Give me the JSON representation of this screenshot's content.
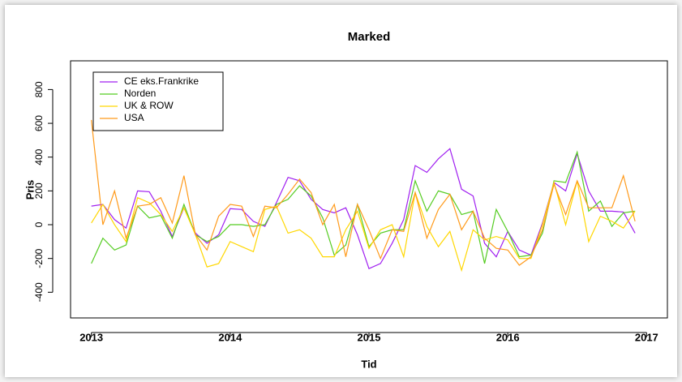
{
  "chart_data": {
    "type": "line",
    "title": "Marked",
    "x_label": "Tid",
    "y_label": "Pris",
    "x": [
      2013,
      2013.083,
      2013.167,
      2013.25,
      2013.333,
      2013.417,
      2013.5,
      2013.583,
      2013.667,
      2013.75,
      2013.833,
      2013.917,
      2014,
      2014.083,
      2014.167,
      2014.25,
      2014.333,
      2014.417,
      2014.5,
      2014.583,
      2014.667,
      2014.75,
      2014.833,
      2014.917,
      2015,
      2015.083,
      2015.167,
      2015.25,
      2015.333,
      2015.417,
      2015.5,
      2015.583,
      2015.667,
      2015.75,
      2015.833,
      2015.917,
      2016,
      2016.083,
      2016.167,
      2016.25,
      2016.333,
      2016.417,
      2016.5,
      2016.583,
      2016.667,
      2016.75,
      2016.833,
      2016.917
    ],
    "series": [
      {
        "name": "CE eks.Frankrike",
        "color": "#a020f0",
        "values": [
          110,
          120,
          30,
          -20,
          200,
          195,
          80,
          -70,
          100,
          -50,
          -110,
          -60,
          95,
          90,
          20,
          -10,
          130,
          280,
          260,
          150,
          90,
          70,
          100,
          -60,
          -260,
          -230,
          -110,
          30,
          350,
          310,
          390,
          450,
          210,
          170,
          -110,
          -190,
          -40,
          -150,
          -180,
          10,
          250,
          200,
          420,
          200,
          80,
          80,
          75,
          -50
        ]
      },
      {
        "name": "Norden",
        "color": "#55cc22",
        "values": [
          -230,
          -80,
          -150,
          -120,
          110,
          40,
          55,
          -80,
          120,
          -60,
          -100,
          -70,
          0,
          0,
          -10,
          0,
          120,
          150,
          230,
          170,
          40,
          -180,
          -120,
          120,
          -130,
          -50,
          -30,
          -30,
          260,
          80,
          200,
          180,
          60,
          80,
          -230,
          90,
          -40,
          -190,
          -180,
          -50,
          260,
          250,
          430,
          80,
          140,
          -10,
          70,
          80
        ]
      },
      {
        "name": "UK & ROW",
        "color": "#ffd700",
        "values": [
          10,
          120,
          0,
          -100,
          160,
          130,
          60,
          -40,
          100,
          -60,
          -250,
          -230,
          -100,
          -130,
          -160,
          90,
          110,
          -50,
          -30,
          -80,
          -190,
          -190,
          -30,
          80,
          -140,
          -30,
          0,
          -190,
          190,
          -10,
          -130,
          -40,
          -270,
          -30,
          -90,
          -70,
          -90,
          -200,
          -200,
          0,
          250,
          0,
          260,
          -100,
          50,
          20,
          -20,
          80
        ]
      },
      {
        "name": "USA",
        "color": "#ff9a1a",
        "values": [
          620,
          0,
          200,
          -80,
          110,
          120,
          160,
          10,
          290,
          -60,
          -150,
          50,
          120,
          110,
          -70,
          110,
          100,
          180,
          270,
          190,
          0,
          120,
          -190,
          120,
          -30,
          -200,
          -30,
          -40,
          190,
          -80,
          90,
          180,
          -30,
          80,
          -80,
          -140,
          -150,
          -240,
          -190,
          -30,
          240,
          60,
          260,
          100,
          100,
          100,
          290,
          20
        ]
      }
    ],
    "xlim": [
      2012.85,
      2017.15
    ],
    "xticks": [
      2013,
      2014,
      2015,
      2016,
      2017
    ],
    "ylim": [
      -552,
      970
    ],
    "yticks": [
      -400,
      -200,
      0,
      200,
      400,
      600,
      800
    ],
    "legend": "topleft"
  }
}
